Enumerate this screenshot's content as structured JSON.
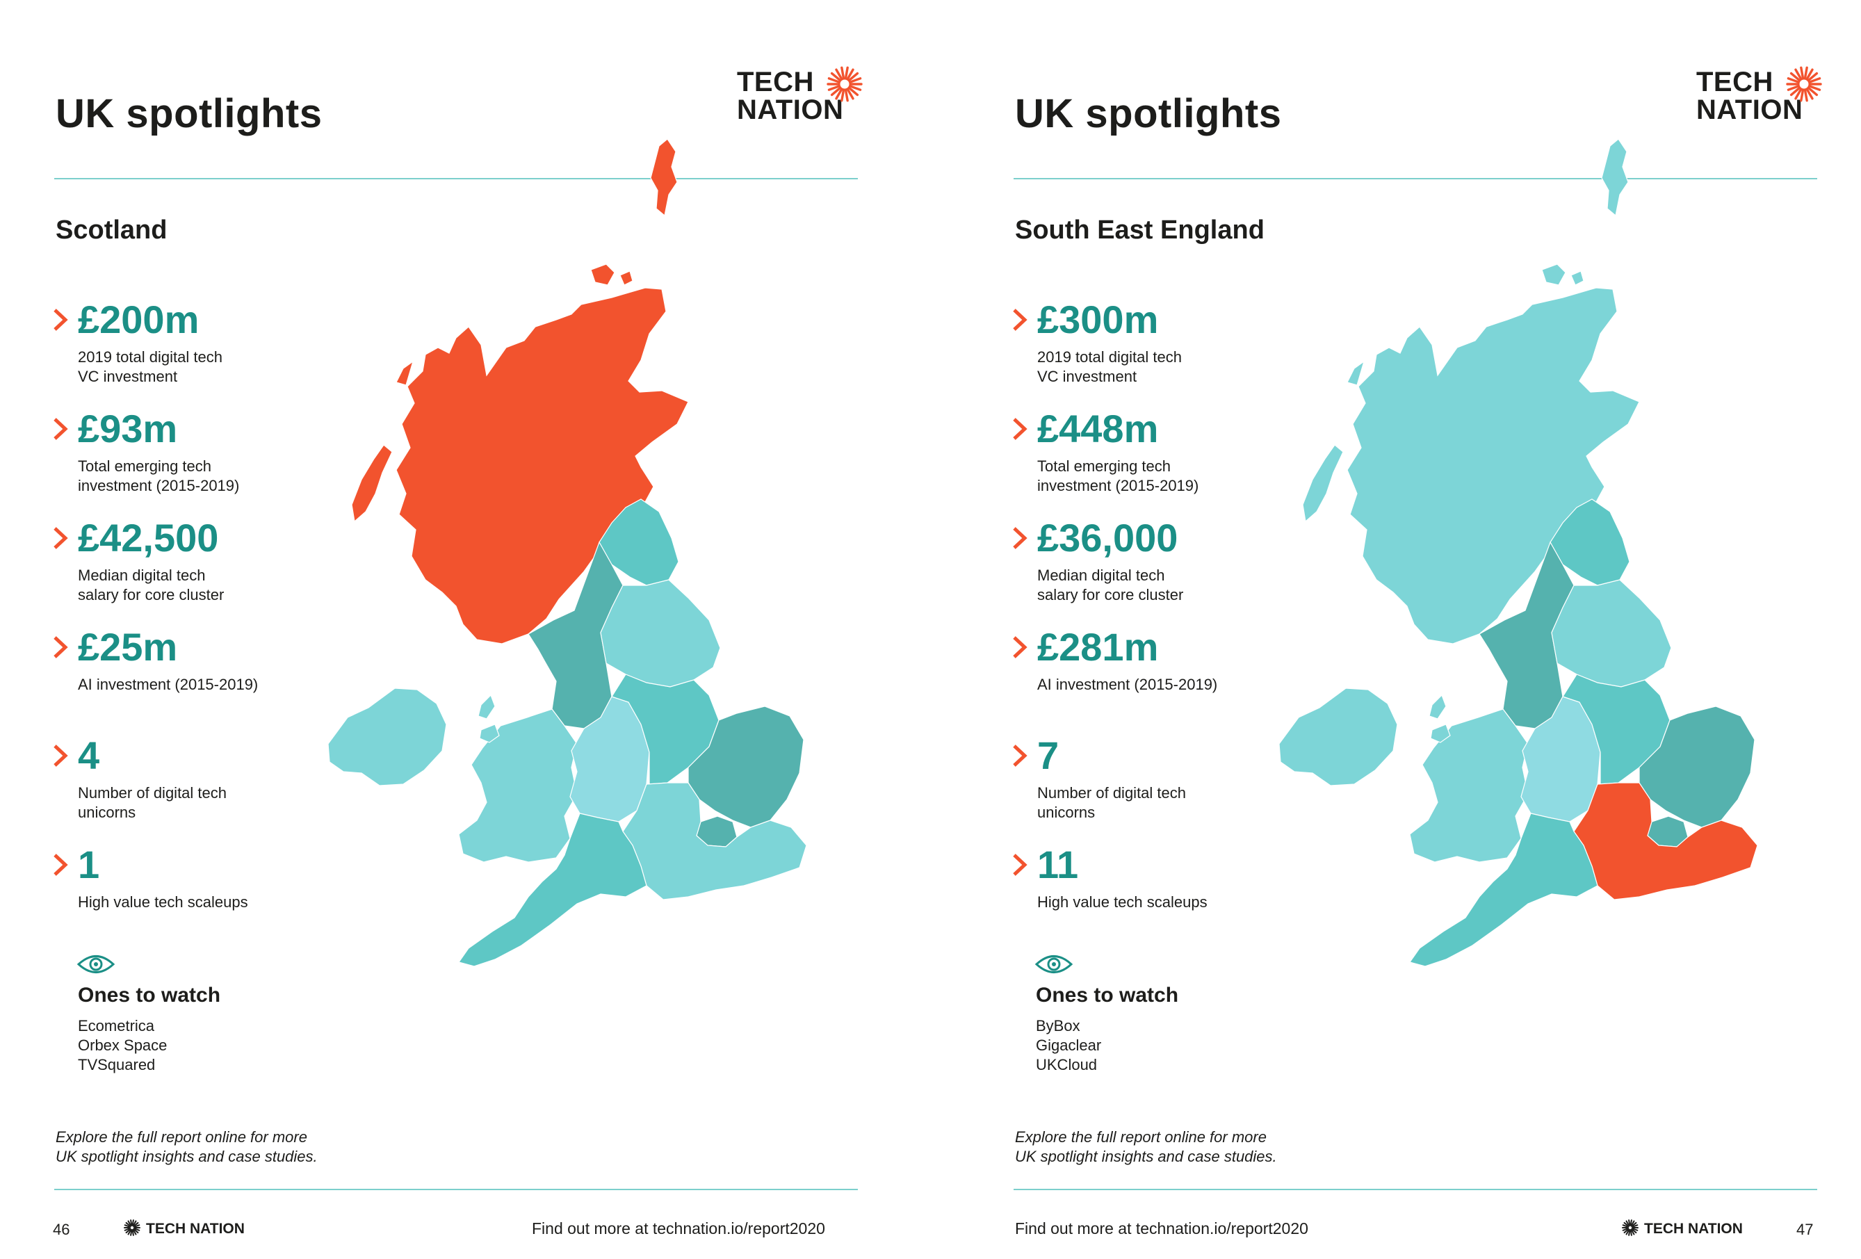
{
  "colors": {
    "highlight": "#f2532e",
    "teal_value": "#1b8f86",
    "map_light": "#7dd5d7",
    "map_mid": "#5ec7c5",
    "map_dark": "#55b2ae",
    "map_pale": "#8fdbe2",
    "rule": "#7ccfcc"
  },
  "icons": [
    "chevron-right-icon",
    "eye-icon",
    "sun-logo-icon",
    "uk-map"
  ],
  "left": {
    "title": "UK spotlights",
    "logo": {
      "line1": "TECH",
      "line2": "NATION"
    },
    "region": "Scotland",
    "highlighted_region": "Scotland",
    "stats": [
      {
        "value": "£200m",
        "label_lines": [
          "2019 total digital tech",
          "VC investment"
        ]
      },
      {
        "value": "£93m",
        "label_lines": [
          "Total emerging tech",
          "investment (2015-2019)"
        ]
      },
      {
        "value": "£42,500",
        "label_lines": [
          "Median digital tech",
          "salary for core cluster"
        ]
      },
      {
        "value": "£25m",
        "label_lines": [
          "AI investment (2015-2019)",
          ""
        ]
      },
      {
        "value": "4",
        "label_lines": [
          "Number of digital tech",
          "unicorns"
        ]
      },
      {
        "value": "1",
        "label_lines": [
          "High value tech scaleups",
          ""
        ]
      }
    ],
    "watch_title": "Ones to watch",
    "watch": [
      "Ecometrica",
      "Orbex Space",
      "TVSquared"
    ],
    "explore_lines": [
      "Explore the full report online for more",
      "UK spotlight insights and case studies."
    ],
    "page_number": "46",
    "footer_logo": "TECH NATION",
    "footer_link": "Find out more at technation.io/report2020"
  },
  "right": {
    "title": "UK spotlights",
    "logo": {
      "line1": "TECH",
      "line2": "NATION"
    },
    "region": "South East England",
    "highlighted_region": "South East England",
    "stats": [
      {
        "value": "£300m",
        "label_lines": [
          "2019 total digital tech",
          "VC investment"
        ]
      },
      {
        "value": "£448m",
        "label_lines": [
          "Total emerging tech",
          "investment (2015-2019)"
        ]
      },
      {
        "value": "£36,000",
        "label_lines": [
          "Median digital tech",
          "salary for core cluster"
        ]
      },
      {
        "value": "£281m",
        "label_lines": [
          "AI investment (2015-2019)",
          ""
        ]
      },
      {
        "value": "7",
        "label_lines": [
          "Number of digital tech",
          "unicorns"
        ]
      },
      {
        "value": "11",
        "label_lines": [
          "High value tech scaleups",
          ""
        ]
      }
    ],
    "watch_title": "Ones to watch",
    "watch": [
      "ByBox",
      "Gigaclear",
      "UKCloud"
    ],
    "explore_lines": [
      "Explore the full report online for more",
      "UK spotlight insights and case studies."
    ],
    "page_number": "47",
    "footer_logo": "TECH NATION",
    "footer_link": "Find out more at technation.io/report2020"
  }
}
